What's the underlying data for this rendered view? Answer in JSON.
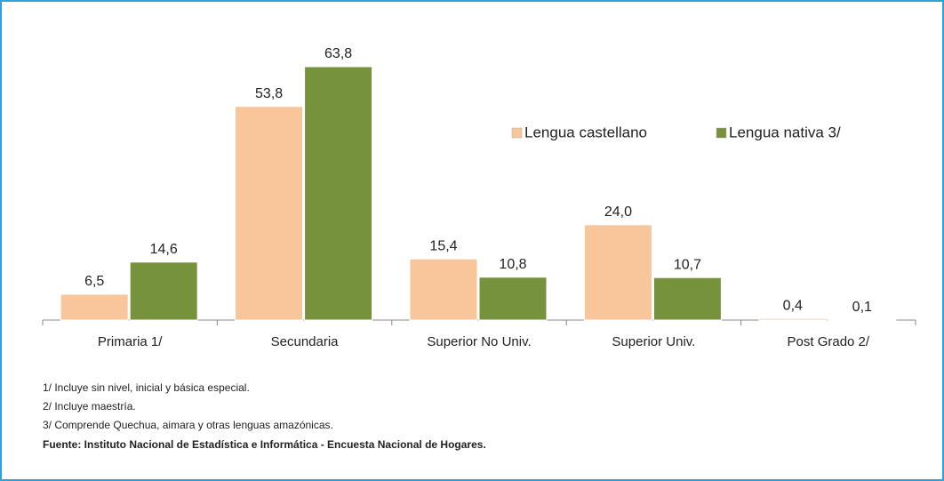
{
  "chart_data": {
    "type": "bar",
    "categories": [
      "Primaria 1/",
      "Secundaria",
      "Superior No Univ.",
      "Superior Univ.",
      "Post Grado 2/"
    ],
    "series": [
      {
        "name": "Lengua castellano",
        "color": "#f9c69c",
        "values": [
          6.5,
          53.8,
          15.4,
          24.0,
          0.4
        ],
        "value_labels": [
          "6,5",
          "53,8",
          "15,4",
          "24,0",
          "0,4"
        ]
      },
      {
        "name": "Lengua nativa 3/",
        "color": "#76923c",
        "values": [
          14.6,
          63.8,
          10.8,
          10.7,
          0.1
        ],
        "value_labels": [
          "14,6",
          "63,8",
          "10,8",
          "10,7",
          "0,1"
        ]
      }
    ],
    "footnotes": [
      "1/ Incluye sin nivel, inicial y básica especial.",
      "2/ Incluye maestría.",
      "3/  Comprende Quechua, aimara y otras lenguas amazónicas."
    ],
    "source": "Fuente: Instituto Nacional de Estadística e Informática - Encuesta Nacional de Hogares."
  }
}
